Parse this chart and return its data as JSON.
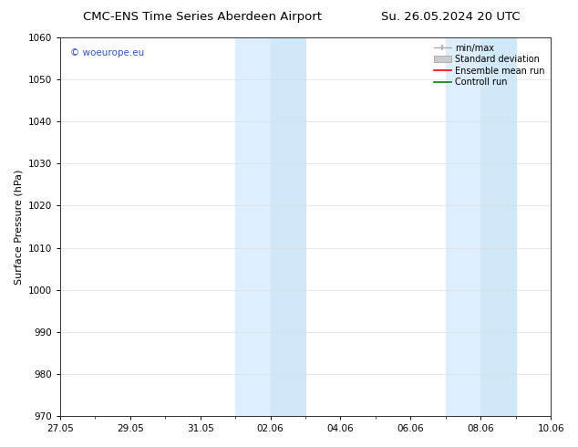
{
  "title_left": "CMC-ENS Time Series Aberdeen Airport",
  "title_right": "Su. 26.05.2024 20 UTC",
  "ylabel": "Surface Pressure (hPa)",
  "ylim": [
    970,
    1060
  ],
  "yticks": [
    970,
    980,
    990,
    1000,
    1010,
    1020,
    1030,
    1040,
    1050,
    1060
  ],
  "x_start_days": 0,
  "x_end_days": 14,
  "xtick_labels": [
    "27.05",
    "29.05",
    "31.05",
    "02.06",
    "04.06",
    "06.06",
    "08.06",
    "10.06"
  ],
  "xtick_positions_days": [
    0,
    2,
    4,
    6,
    8,
    10,
    12,
    14
  ],
  "shaded_bands": [
    {
      "start_day": 5.0,
      "end_day": 6.0
    },
    {
      "start_day": 6.0,
      "end_day": 7.0
    },
    {
      "start_day": 11.0,
      "end_day": 12.0
    },
    {
      "start_day": 12.0,
      "end_day": 13.0
    }
  ],
  "shaded_colors": [
    "#ddeeff",
    "#c8e0f8",
    "#ddeeff",
    "#c8e0f8"
  ],
  "background_color": "#ffffff",
  "legend_labels": [
    "min/max",
    "Standard deviation",
    "Ensemble mean run",
    "Controll run"
  ],
  "watermark_text": "© woeurope.eu",
  "watermark_color": "#3355bb",
  "title_fontsize": 9.5,
  "axis_label_fontsize": 8,
  "tick_fontsize": 7.5,
  "legend_fontsize": 7.0
}
